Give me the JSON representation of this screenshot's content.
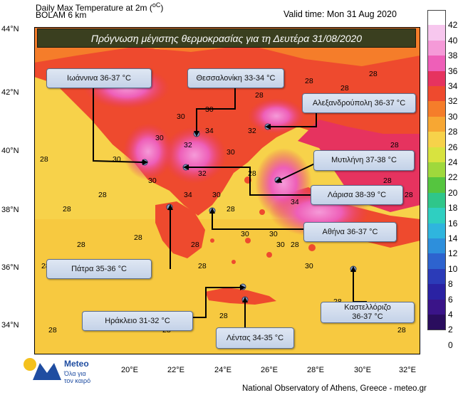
{
  "header": {
    "title_line1": "Daily Max Temperature at 2m (",
    "title_unit": "oC",
    "title_line2": "BOLAM 6 km",
    "valid_time": "Valid time: Mon 31 Aug 2020"
  },
  "banner": "Πρόγνωση μέγιστης θερμοκρασίας για τη Δευτέρα 31/08/2020",
  "lat_labels": [
    "44°N",
    "42°N",
    "40°N",
    "38°N",
    "36°N",
    "34°N"
  ],
  "lon_labels": [
    "20°E",
    "22°E",
    "24°E",
    "26°E",
    "28°E",
    "30°E",
    "32°E"
  ],
  "colorbar": {
    "labels": [
      "42",
      "40",
      "38",
      "36",
      "34",
      "32",
      "30",
      "28",
      "26",
      "24",
      "22",
      "20",
      "18",
      "16",
      "14",
      "12",
      "10",
      "8",
      "6",
      "4",
      "2",
      "0"
    ],
    "colors": [
      "#ffffff",
      "#f7c7ee",
      "#f59ad8",
      "#ee5fb8",
      "#e6335f",
      "#ee4a2e",
      "#f57d2a",
      "#f7a733",
      "#f7d24a",
      "#d8e33f",
      "#9fd83c",
      "#55c53f",
      "#2fc68a",
      "#2fcfc1",
      "#2fb5de",
      "#2d8fdc",
      "#2d63cf",
      "#2b3bb8",
      "#2a22a3",
      "#3a1488",
      "#2a0d5e"
    ]
  },
  "cities": [
    {
      "name": "Ιωάννινα 36-37 °C"
    },
    {
      "name": "Θεσσαλονίκη 33-34 °C"
    },
    {
      "name": "Αλεξανδρούπολη 36-37 °C"
    },
    {
      "name": "Μυτιλήνη 37-38 °C"
    },
    {
      "name": "Λάρισα 38-39 °C"
    },
    {
      "name": "Αθήνα 36-37 °C"
    },
    {
      "name": "Πάτρα 35-36 °C"
    },
    {
      "name": "Ηράκλειο 31-32 °C"
    },
    {
      "name": "Λέντας 34-35 °C"
    },
    {
      "name": "Καστελλόριζο",
      "name2": "36-37 °C"
    }
  ],
  "sea_values": [
    "28",
    "28",
    "28",
    "28",
    "28",
    "28",
    "28",
    "28",
    "28",
    "28",
    "28",
    "28",
    "28",
    "28",
    "28",
    "28",
    "28",
    "28",
    "28",
    "28",
    "28",
    "28",
    "28",
    "28",
    "28",
    "28",
    "28",
    "28",
    "28",
    "28",
    "30",
    "30",
    "30",
    "30",
    "30",
    "30",
    "30",
    "30",
    "30",
    "30",
    "30",
    "32",
    "32",
    "32",
    "32",
    "34",
    "34",
    "34",
    "34"
  ],
  "logo": {
    "name": "Meteo",
    "tagline1": "Όλα για",
    "tagline2": "τον καιρό"
  },
  "footer": "National Observatory of Athens, Greece - meteo.gr"
}
